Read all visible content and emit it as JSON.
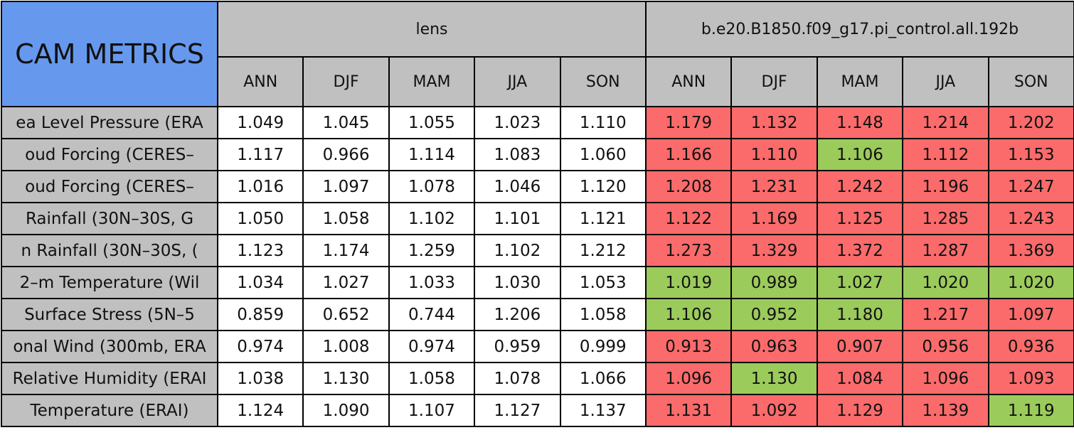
{
  "table": {
    "title": "CAM METRICS",
    "groups": [
      {
        "name": "lens",
        "columns": [
          "ANN",
          "DJF",
          "MAM",
          "JJA",
          "SON"
        ]
      },
      {
        "name": "b.e20.B1850.f09_g17.pi_control.all.192b",
        "columns": [
          "ANN",
          "DJF",
          "MAM",
          "JJA",
          "SON"
        ]
      }
    ],
    "colors": {
      "red": "#fb6b6b",
      "green": "#9bcb5b",
      "plain": "#ffffff"
    },
    "rows": [
      {
        "label": "ea Level Pressure (ERA",
        "values": [
          "1.049",
          "1.045",
          "1.055",
          "1.023",
          "1.110",
          "1.179",
          "1.132",
          "1.148",
          "1.214",
          "1.202"
        ],
        "marks": [
          "plain",
          "plain",
          "plain",
          "plain",
          "plain",
          "red",
          "red",
          "red",
          "red",
          "red"
        ]
      },
      {
        "label": "oud Forcing (CERES–",
        "values": [
          "1.117",
          "0.966",
          "1.114",
          "1.083",
          "1.060",
          "1.166",
          "1.110",
          "1.106",
          "1.112",
          "1.153"
        ],
        "marks": [
          "plain",
          "plain",
          "plain",
          "plain",
          "plain",
          "red",
          "red",
          "green",
          "red",
          "red"
        ]
      },
      {
        "label": "oud Forcing (CERES–",
        "values": [
          "1.016",
          "1.097",
          "1.078",
          "1.046",
          "1.120",
          "1.208",
          "1.231",
          "1.242",
          "1.196",
          "1.247"
        ],
        "marks": [
          "plain",
          "plain",
          "plain",
          "plain",
          "plain",
          "red",
          "red",
          "red",
          "red",
          "red"
        ]
      },
      {
        "label": "Rainfall (30N–30S, G",
        "values": [
          "1.050",
          "1.058",
          "1.102",
          "1.101",
          "1.121",
          "1.122",
          "1.169",
          "1.125",
          "1.285",
          "1.243"
        ],
        "marks": [
          "plain",
          "plain",
          "plain",
          "plain",
          "plain",
          "red",
          "red",
          "red",
          "red",
          "red"
        ]
      },
      {
        "label": "n Rainfall (30N–30S, (",
        "values": [
          "1.123",
          "1.174",
          "1.259",
          "1.102",
          "1.212",
          "1.273",
          "1.329",
          "1.372",
          "1.287",
          "1.369"
        ],
        "marks": [
          "plain",
          "plain",
          "plain",
          "plain",
          "plain",
          "red",
          "red",
          "red",
          "red",
          "red"
        ]
      },
      {
        "label": "2–m Temperature (Wil",
        "values": [
          "1.034",
          "1.027",
          "1.033",
          "1.030",
          "1.053",
          "1.019",
          "0.989",
          "1.027",
          "1.020",
          "1.020"
        ],
        "marks": [
          "plain",
          "plain",
          "plain",
          "plain",
          "plain",
          "green",
          "green",
          "green",
          "green",
          "green"
        ]
      },
      {
        "label": "Surface Stress (5N–5",
        "values": [
          "0.859",
          "0.652",
          "0.744",
          "1.206",
          "1.058",
          "1.106",
          "0.952",
          "1.180",
          "1.217",
          "1.097"
        ],
        "marks": [
          "plain",
          "plain",
          "plain",
          "plain",
          "plain",
          "green",
          "green",
          "green",
          "red",
          "red"
        ]
      },
      {
        "label": "onal Wind (300mb, ERA",
        "values": [
          "0.974",
          "1.008",
          "0.974",
          "0.959",
          "0.999",
          "0.913",
          "0.963",
          "0.907",
          "0.956",
          "0.936"
        ],
        "marks": [
          "plain",
          "plain",
          "plain",
          "plain",
          "plain",
          "red",
          "red",
          "red",
          "red",
          "red"
        ]
      },
      {
        "label": "Relative Humidity (ERAI",
        "values": [
          "1.038",
          "1.130",
          "1.058",
          "1.078",
          "1.066",
          "1.096",
          "1.130",
          "1.084",
          "1.096",
          "1.093"
        ],
        "marks": [
          "plain",
          "plain",
          "plain",
          "plain",
          "plain",
          "red",
          "green",
          "red",
          "red",
          "red"
        ]
      },
      {
        "label": "Temperature (ERAI)",
        "values": [
          "1.124",
          "1.090",
          "1.107",
          "1.127",
          "1.137",
          "1.131",
          "1.092",
          "1.129",
          "1.139",
          "1.119"
        ],
        "marks": [
          "plain",
          "plain",
          "plain",
          "plain",
          "plain",
          "red",
          "red",
          "red",
          "red",
          "green"
        ]
      }
    ]
  }
}
